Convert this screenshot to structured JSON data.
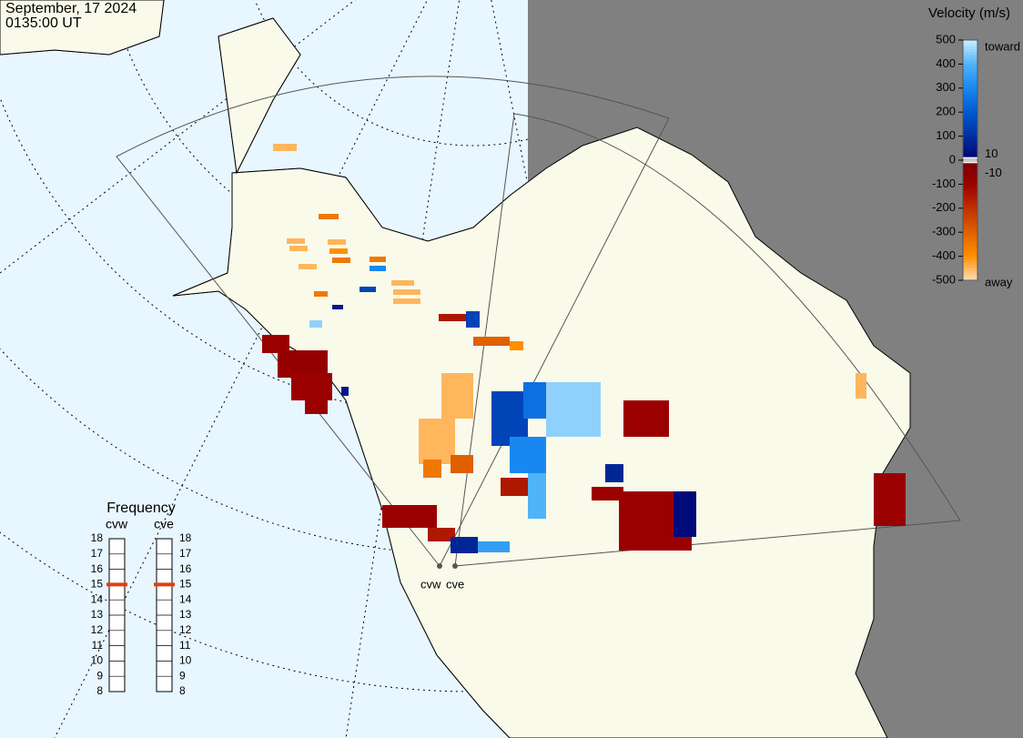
{
  "header": {
    "date": "September, 17 2024",
    "time": "0135:00 UT"
  },
  "colorbar": {
    "title": "Velocity (m/s)",
    "clim": [
      -500,
      500
    ],
    "ticks": [
      500,
      400,
      300,
      200,
      100,
      0,
      -100,
      -200,
      -300,
      -400,
      -500
    ],
    "inner_ticks": [
      10,
      -10
    ],
    "toward": "toward",
    "away": "away"
  },
  "frequency": {
    "title": "Frequency",
    "ticks": [
      18,
      17,
      16,
      15,
      14,
      13,
      12,
      11,
      10,
      9,
      8
    ],
    "radars": [
      {
        "name": "cvw",
        "value": 15
      },
      {
        "name": "cve",
        "value": 15
      }
    ]
  },
  "cells": [
    -450,
    -350,
    -450,
    -450,
    -450,
    -400,
    -350,
    -450,
    -350,
    300,
    -450,
    -450,
    -450,
    150,
    -350,
    50,
    450,
    -100,
    -80,
    -100,
    -100,
    50,
    -150,
    150,
    -300,
    -400,
    -450,
    -450,
    -350,
    -300,
    150,
    250,
    450,
    300,
    400,
    -150,
    -100,
    -100,
    -100,
    20,
    -100,
    -450,
    -100,
    -150,
    80,
    350,
    80
  ]
}
